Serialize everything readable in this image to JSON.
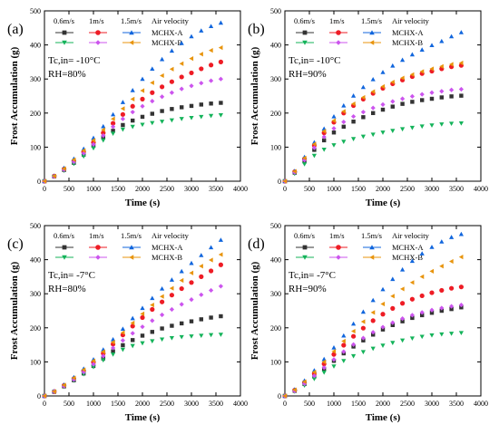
{
  "chart_data": [
    {
      "type": "scatter",
      "panel_label": "(a)",
      "condition_lines": [
        "Tc,in= -10°C",
        "RH=80%"
      ],
      "xlabel": "Time (s)",
      "ylabel": "Frost Accumulation (g)",
      "xlim": [
        0,
        4000
      ],
      "ylim": [
        0,
        500
      ],
      "x_ticks": [
        "0",
        "500",
        "1000",
        "1500",
        "2000",
        "2500",
        "3000",
        "3500",
        "4000"
      ],
      "y_ticks": [
        "0",
        "100",
        "200",
        "300",
        "400",
        "500"
      ],
      "grid": false,
      "legend_position": "top-left",
      "legend_header": [
        "0.6m/s",
        "1m/s",
        "1.5m/s",
        "Air velocity"
      ],
      "legend_rows": [
        "MCHX-A",
        "MCHX-B"
      ],
      "x": [
        0,
        200,
        400,
        600,
        800,
        1000,
        1200,
        1400,
        1600,
        1800,
        2000,
        2200,
        2400,
        2600,
        2800,
        3000,
        3200,
        3400,
        3600
      ],
      "series": [
        {
          "velocity": "0.6m/s",
          "hx": "MCHX-A",
          "marker": "square",
          "color": "#333333",
          "values": [
            0,
            14,
            33,
            54,
            78,
            104,
            128,
            148,
            165,
            178,
            189,
            198,
            206,
            212,
            217,
            221,
            225,
            228,
            230
          ]
        },
        {
          "velocity": "1m/s",
          "hx": "MCHX-A",
          "marker": "circle",
          "color": "#ee1c25",
          "values": [
            0,
            15,
            36,
            60,
            86,
            114,
            142,
            170,
            196,
            220,
            241,
            260,
            277,
            292,
            306,
            318,
            330,
            341,
            350
          ]
        },
        {
          "velocity": "1.5m/s",
          "hx": "MCHX-A",
          "marker": "triangle-up",
          "color": "#1166dd",
          "values": [
            0,
            16,
            39,
            66,
            95,
            127,
            161,
            196,
            232,
            267,
            300,
            330,
            358,
            383,
            405,
            425,
            442,
            455,
            465
          ]
        },
        {
          "velocity": "0.6m/s",
          "hx": "MCHX-B",
          "marker": "triangle-down",
          "color": "#14b35a",
          "values": [
            0,
            13,
            31,
            51,
            73,
            97,
            120,
            140,
            152,
            160,
            166,
            171,
            175,
            179,
            183,
            186,
            189,
            192,
            194
          ]
        },
        {
          "velocity": "1m/s",
          "hx": "MCHX-B",
          "marker": "diamond",
          "color": "#cc55ee",
          "values": [
            0,
            14,
            34,
            57,
            82,
            108,
            134,
            160,
            183,
            203,
            220,
            235,
            248,
            260,
            271,
            280,
            288,
            295,
            300
          ]
        },
        {
          "velocity": "1.5m/s",
          "hx": "MCHX-B",
          "marker": "triangle-left",
          "color": "#e8940c",
          "values": [
            0,
            15,
            37,
            63,
            90,
            120,
            151,
            183,
            213,
            241,
            266,
            289,
            310,
            329,
            345,
            360,
            373,
            384,
            392
          ]
        }
      ]
    },
    {
      "type": "scatter",
      "panel_label": "(b)",
      "condition_lines": [
        "Tc,in= -10°C",
        "RH=90%"
      ],
      "xlabel": "Time (s)",
      "ylabel": "Frost Accumulation (g)",
      "xlim": [
        0,
        4000
      ],
      "ylim": [
        0,
        500
      ],
      "x_ticks": [
        "0",
        "500",
        "1000",
        "1500",
        "2000",
        "2500",
        "3000",
        "3500",
        "4000"
      ],
      "y_ticks": [
        "0",
        "100",
        "200",
        "300",
        "400",
        "500"
      ],
      "grid": false,
      "legend_position": "top-left",
      "legend_header": [
        "0.6m/s",
        "1m/s",
        "1.5m/s",
        "Air velocity"
      ],
      "legend_rows": [
        "MCHX-A",
        "MCHX-B"
      ],
      "x": [
        0,
        200,
        400,
        600,
        800,
        1000,
        1200,
        1400,
        1600,
        1800,
        2000,
        2200,
        2400,
        2600,
        2800,
        3000,
        3200,
        3400,
        3600
      ],
      "series": [
        {
          "velocity": "0.6m/s",
          "hx": "MCHX-A",
          "marker": "square",
          "color": "#333333",
          "values": [
            0,
            25,
            58,
            92,
            120,
            143,
            160,
            175,
            188,
            200,
            210,
            219,
            227,
            233,
            238,
            242,
            246,
            249,
            251
          ]
        },
        {
          "velocity": "1m/s",
          "hx": "MCHX-A",
          "marker": "circle",
          "color": "#ee1c25",
          "values": [
            0,
            28,
            66,
            105,
            142,
            173,
            200,
            222,
            241,
            258,
            273,
            286,
            297,
            307,
            316,
            323,
            330,
            336,
            340
          ]
        },
        {
          "velocity": "1.5m/s",
          "hx": "MCHX-A",
          "marker": "triangle-up",
          "color": "#1166dd",
          "values": [
            0,
            30,
            71,
            114,
            154,
            190,
            222,
            251,
            276,
            299,
            320,
            339,
            356,
            372,
            386,
            399,
            411,
            425,
            437
          ]
        },
        {
          "velocity": "0.6m/s",
          "hx": "MCHX-B",
          "marker": "triangle-down",
          "color": "#14b35a",
          "values": [
            0,
            22,
            50,
            75,
            93,
            106,
            116,
            124,
            131,
            137,
            143,
            148,
            153,
            157,
            161,
            164,
            167,
            169,
            170
          ]
        },
        {
          "velocity": "1m/s",
          "hx": "MCHX-B",
          "marker": "diamond",
          "color": "#cc55ee",
          "values": [
            0,
            26,
            62,
            98,
            130,
            155,
            174,
            190,
            203,
            215,
            225,
            234,
            242,
            249,
            255,
            260,
            264,
            268,
            270
          ]
        },
        {
          "velocity": "1.5m/s",
          "hx": "MCHX-B",
          "marker": "triangle-left",
          "color": "#e8940c",
          "values": [
            0,
            29,
            68,
            109,
            147,
            178,
            205,
            227,
            246,
            263,
            278,
            291,
            303,
            313,
            322,
            330,
            337,
            343,
            347
          ]
        }
      ]
    },
    {
      "type": "scatter",
      "panel_label": "(c)",
      "condition_lines": [
        "Tc,in= -7°C",
        "RH=80%"
      ],
      "xlabel": "Time (s)",
      "ylabel": "Frost Accumulation (g)",
      "xlim": [
        0,
        4000
      ],
      "ylim": [
        0,
        500
      ],
      "x_ticks": [
        "0",
        "500",
        "1000",
        "1500",
        "2000",
        "2500",
        "3000",
        "3500",
        "4000"
      ],
      "y_ticks": [
        "0",
        "100",
        "200",
        "300",
        "400",
        "500"
      ],
      "grid": false,
      "legend_position": "top-left",
      "legend_header": [
        "0.6m/s",
        "1m/s",
        "1.5m/s",
        "Air velocity"
      ],
      "legend_rows": [
        "MCHX-A",
        "MCHX-B"
      ],
      "x": [
        0,
        200,
        400,
        600,
        800,
        1000,
        1200,
        1400,
        1600,
        1800,
        2000,
        2200,
        2400,
        2600,
        2800,
        3000,
        3200,
        3400,
        3600
      ],
      "series": [
        {
          "velocity": "0.6m/s",
          "hx": "MCHX-A",
          "marker": "square",
          "color": "#333333",
          "values": [
            0,
            12,
            28,
            46,
            66,
            88,
            110,
            131,
            149,
            164,
            177,
            188,
            198,
            206,
            213,
            219,
            225,
            230,
            234
          ]
        },
        {
          "velocity": "1m/s",
          "hx": "MCHX-A",
          "marker": "circle",
          "color": "#ee1c25",
          "values": [
            0,
            13,
            31,
            51,
            74,
            99,
            125,
            152,
            179,
            205,
            230,
            254,
            276,
            296,
            315,
            333,
            350,
            367,
            385
          ]
        },
        {
          "velocity": "1.5m/s",
          "hx": "MCHX-A",
          "marker": "triangle-up",
          "color": "#1166dd",
          "values": [
            0,
            14,
            33,
            55,
            80,
            107,
            136,
            166,
            197,
            228,
            258,
            287,
            315,
            341,
            366,
            390,
            413,
            436,
            458
          ]
        },
        {
          "velocity": "0.6m/s",
          "hx": "MCHX-B",
          "marker": "triangle-down",
          "color": "#14b35a",
          "values": [
            0,
            12,
            27,
            45,
            64,
            85,
            105,
            122,
            136,
            147,
            155,
            161,
            166,
            170,
            173,
            175,
            177,
            179,
            180
          ]
        },
        {
          "velocity": "1m/s",
          "hx": "MCHX-B",
          "marker": "diamond",
          "color": "#cc55ee",
          "values": [
            0,
            13,
            29,
            48,
            70,
            93,
            117,
            141,
            163,
            184,
            203,
            221,
            238,
            254,
            269,
            283,
            297,
            310,
            322
          ]
        },
        {
          "velocity": "1.5m/s",
          "hx": "MCHX-B",
          "marker": "triangle-left",
          "color": "#e8940c",
          "values": [
            0,
            13,
            32,
            53,
            77,
            103,
            130,
            158,
            186,
            214,
            241,
            267,
            292,
            316,
            339,
            361,
            381,
            399,
            415
          ]
        }
      ]
    },
    {
      "type": "scatter",
      "panel_label": "(d)",
      "condition_lines": [
        "Tc,in= -7°C",
        "RH=90%"
      ],
      "xlabel": "Time (s)",
      "ylabel": "Frost Accumulation (g)",
      "xlim": [
        0,
        4000
      ],
      "ylim": [
        0,
        500
      ],
      "x_ticks": [
        "0",
        "500",
        "1000",
        "1500",
        "2000",
        "2500",
        "3000",
        "3500",
        "4000"
      ],
      "y_ticks": [
        "0",
        "100",
        "200",
        "300",
        "400",
        "500"
      ],
      "grid": false,
      "legend_position": "top-left",
      "legend_header": [
        "0.6m/s",
        "1m/s",
        "1.5m/s",
        "Air velocity"
      ],
      "legend_rows": [
        "MCHX-A",
        "MCHX-B"
      ],
      "x": [
        0,
        200,
        400,
        600,
        800,
        1000,
        1200,
        1400,
        1600,
        1800,
        2000,
        2200,
        2400,
        2600,
        2800,
        3000,
        3200,
        3400,
        3600
      ],
      "series": [
        {
          "velocity": "0.6m/s",
          "hx": "MCHX-A",
          "marker": "square",
          "color": "#333333",
          "values": [
            0,
            15,
            35,
            57,
            80,
            103,
            125,
            145,
            163,
            180,
            195,
            208,
            219,
            229,
            237,
            244,
            250,
            255,
            260
          ]
        },
        {
          "velocity": "1m/s",
          "hx": "MCHX-A",
          "marker": "circle",
          "color": "#ee1c25",
          "values": [
            0,
            17,
            40,
            66,
            94,
            122,
            149,
            175,
            199,
            221,
            240,
            257,
            272,
            284,
            294,
            303,
            310,
            316,
            320
          ]
        },
        {
          "velocity": "1.5m/s",
          "hx": "MCHX-A",
          "marker": "triangle-up",
          "color": "#1166dd",
          "values": [
            0,
            19,
            45,
            75,
            108,
            142,
            177,
            212,
            247,
            281,
            313,
            343,
            371,
            396,
            418,
            437,
            453,
            466,
            475
          ]
        },
        {
          "velocity": "0.6m/s",
          "hx": "MCHX-B",
          "marker": "triangle-down",
          "color": "#14b35a",
          "values": [
            0,
            13,
            31,
            50,
            69,
            87,
            103,
            117,
            129,
            139,
            148,
            156,
            163,
            169,
            174,
            178,
            181,
            183,
            185
          ]
        },
        {
          "velocity": "1m/s",
          "hx": "MCHX-B",
          "marker": "diamond",
          "color": "#cc55ee",
          "values": [
            0,
            15,
            36,
            59,
            83,
            107,
            130,
            151,
            170,
            187,
            202,
            215,
            227,
            237,
            245,
            252,
            258,
            263,
            267
          ]
        },
        {
          "velocity": "1.5m/s",
          "hx": "MCHX-B",
          "marker": "triangle-left",
          "color": "#e8940c",
          "values": [
            0,
            18,
            42,
            70,
            100,
            131,
            161,
            190,
            218,
            245,
            270,
            293,
            314,
            333,
            350,
            366,
            381,
            395,
            408
          ]
        }
      ]
    }
  ]
}
